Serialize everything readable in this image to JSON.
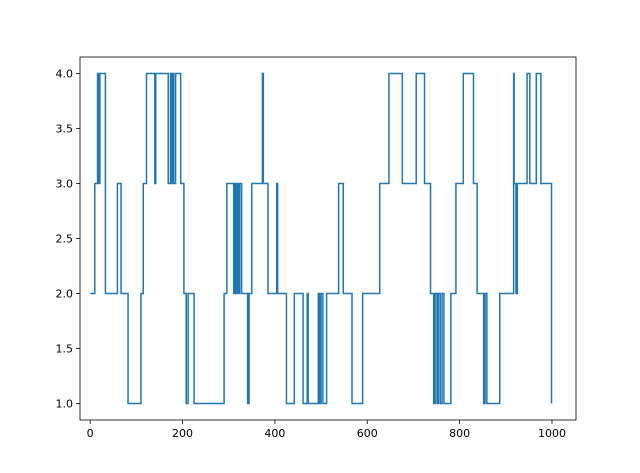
{
  "chart_data": {
    "type": "line",
    "title": "",
    "xlabel": "",
    "ylabel": "",
    "xlim": [
      -22,
      1052
    ],
    "ylim": [
      0.85,
      4.15
    ],
    "xticks": [
      0,
      200,
      400,
      600,
      800,
      1000
    ],
    "xtick_labels": [
      "0",
      "200",
      "400",
      "600",
      "800",
      "1000"
    ],
    "yticks": [
      1.0,
      1.5,
      2.0,
      2.5,
      3.0,
      3.5,
      4.0
    ],
    "ytick_labels": [
      "1.0",
      "1.5",
      "2.0",
      "2.5",
      "3.0",
      "3.5",
      "4.0"
    ],
    "grid": false,
    "legend": "none",
    "series": [
      {
        "color": "#1f77b4",
        "points": [
          [
            0,
            2
          ],
          [
            10,
            2
          ],
          [
            10,
            3
          ],
          [
            16,
            3
          ],
          [
            16,
            4
          ],
          [
            19,
            4
          ],
          [
            19,
            3
          ],
          [
            21,
            3
          ],
          [
            21,
            4
          ],
          [
            33,
            4
          ],
          [
            33,
            2
          ],
          [
            59,
            2
          ],
          [
            59,
            3
          ],
          [
            67,
            3
          ],
          [
            67,
            2
          ],
          [
            82,
            2
          ],
          [
            82,
            1
          ],
          [
            110,
            1
          ],
          [
            110,
            2
          ],
          [
            115,
            2
          ],
          [
            115,
            3
          ],
          [
            122,
            3
          ],
          [
            122,
            4
          ],
          [
            140,
            4
          ],
          [
            140,
            3
          ],
          [
            142,
            3
          ],
          [
            142,
            4
          ],
          [
            169,
            4
          ],
          [
            169,
            3
          ],
          [
            174,
            3
          ],
          [
            174,
            4
          ],
          [
            176,
            4
          ],
          [
            176,
            3
          ],
          [
            179,
            3
          ],
          [
            179,
            4
          ],
          [
            181,
            4
          ],
          [
            181,
            3
          ],
          [
            185,
            3
          ],
          [
            185,
            4
          ],
          [
            196,
            4
          ],
          [
            196,
            3
          ],
          [
            203,
            3
          ],
          [
            203,
            2
          ],
          [
            208,
            2
          ],
          [
            208,
            1
          ],
          [
            212,
            1
          ],
          [
            212,
            2
          ],
          [
            225,
            2
          ],
          [
            225,
            1
          ],
          [
            290,
            1
          ],
          [
            290,
            2
          ],
          [
            296,
            2
          ],
          [
            296,
            3
          ],
          [
            311,
            3
          ],
          [
            311,
            2
          ],
          [
            313,
            2
          ],
          [
            313,
            3
          ],
          [
            316,
            3
          ],
          [
            316,
            2
          ],
          [
            319,
            2
          ],
          [
            319,
            3
          ],
          [
            322,
            3
          ],
          [
            322,
            2
          ],
          [
            324,
            2
          ],
          [
            324,
            3
          ],
          [
            328,
            3
          ],
          [
            328,
            2
          ],
          [
            341,
            2
          ],
          [
            341,
            1
          ],
          [
            344,
            1
          ],
          [
            344,
            2
          ],
          [
            350,
            2
          ],
          [
            350,
            3
          ],
          [
            373,
            3
          ],
          [
            373,
            4
          ],
          [
            375,
            4
          ],
          [
            375,
            3
          ],
          [
            385,
            3
          ],
          [
            385,
            2
          ],
          [
            404,
            2
          ],
          [
            404,
            3
          ],
          [
            406,
            3
          ],
          [
            406,
            2
          ],
          [
            425,
            2
          ],
          [
            425,
            1
          ],
          [
            442,
            1
          ],
          [
            442,
            2
          ],
          [
            461,
            2
          ],
          [
            461,
            1
          ],
          [
            470,
            1
          ],
          [
            470,
            2
          ],
          [
            472,
            2
          ],
          [
            472,
            1
          ],
          [
            494,
            1
          ],
          [
            494,
            2
          ],
          [
            497,
            2
          ],
          [
            497,
            1
          ],
          [
            500,
            1
          ],
          [
            500,
            2
          ],
          [
            504,
            2
          ],
          [
            504,
            1
          ],
          [
            512,
            1
          ],
          [
            512,
            2
          ],
          [
            538,
            2
          ],
          [
            538,
            3
          ],
          [
            548,
            3
          ],
          [
            548,
            2
          ],
          [
            567,
            2
          ],
          [
            567,
            1
          ],
          [
            590,
            1
          ],
          [
            590,
            2
          ],
          [
            627,
            2
          ],
          [
            627,
            3
          ],
          [
            647,
            3
          ],
          [
            647,
            4
          ],
          [
            676,
            4
          ],
          [
            676,
            3
          ],
          [
            706,
            3
          ],
          [
            706,
            4
          ],
          [
            724,
            4
          ],
          [
            724,
            3
          ],
          [
            737,
            3
          ],
          [
            737,
            2
          ],
          [
            744,
            2
          ],
          [
            744,
            1
          ],
          [
            747,
            1
          ],
          [
            747,
            2
          ],
          [
            751,
            2
          ],
          [
            751,
            1
          ],
          [
            754,
            1
          ],
          [
            754,
            2
          ],
          [
            758,
            2
          ],
          [
            758,
            1
          ],
          [
            762,
            1
          ],
          [
            762,
            2
          ],
          [
            766,
            2
          ],
          [
            766,
            1
          ],
          [
            781,
            1
          ],
          [
            781,
            2
          ],
          [
            792,
            2
          ],
          [
            792,
            3
          ],
          [
            808,
            3
          ],
          [
            808,
            4
          ],
          [
            830,
            4
          ],
          [
            830,
            3
          ],
          [
            838,
            3
          ],
          [
            838,
            2
          ],
          [
            852,
            2
          ],
          [
            852,
            1
          ],
          [
            855,
            1
          ],
          [
            855,
            2
          ],
          [
            859,
            2
          ],
          [
            859,
            1
          ],
          [
            887,
            1
          ],
          [
            887,
            2
          ],
          [
            917,
            2
          ],
          [
            917,
            4
          ],
          [
            918,
            4
          ],
          [
            918,
            3
          ],
          [
            922,
            3
          ],
          [
            922,
            2
          ],
          [
            925,
            2
          ],
          [
            925,
            3
          ],
          [
            946,
            3
          ],
          [
            946,
            4
          ],
          [
            952,
            4
          ],
          [
            952,
            3
          ],
          [
            966,
            3
          ],
          [
            966,
            4
          ],
          [
            976,
            4
          ],
          [
            976,
            3
          ],
          [
            999,
            3
          ],
          [
            999,
            1
          ]
        ]
      }
    ]
  }
}
